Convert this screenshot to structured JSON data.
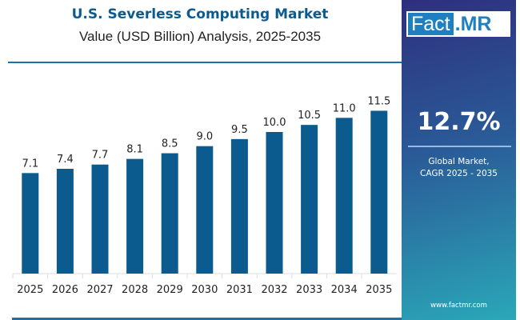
{
  "header": {
    "title": "U.S. Severless Computing Market",
    "subtitle": "Value (USD Billion) Analysis, 2025-2035"
  },
  "logo": {
    "part1": "Fact",
    "part2": ".MR"
  },
  "side_panel": {
    "cagr": "12.7%",
    "label_line1": "Global Market,",
    "label_line2": "CAGR 2025 - 2035",
    "url": "www.factmr.com"
  },
  "colors": {
    "bar": "#0b5b8f",
    "brand": "#1f7fbf"
  },
  "chart_data": {
    "type": "bar",
    "categories": [
      "2025",
      "2026",
      "2027",
      "2028",
      "2029",
      "2030",
      "2031",
      "2032",
      "2033",
      "2034",
      "2035"
    ],
    "values": [
      7.1,
      7.4,
      7.7,
      8.1,
      8.5,
      9.0,
      9.5,
      10.0,
      10.5,
      11.0,
      11.5
    ],
    "labels": [
      "7.1",
      "7.4",
      "7.7",
      "8.1",
      "8.5",
      "9.0",
      "9.5",
      "10.0",
      "10.5",
      "11.0",
      "11.5"
    ],
    "ylim": [
      0,
      12
    ],
    "grid": false,
    "legend": "none"
  }
}
